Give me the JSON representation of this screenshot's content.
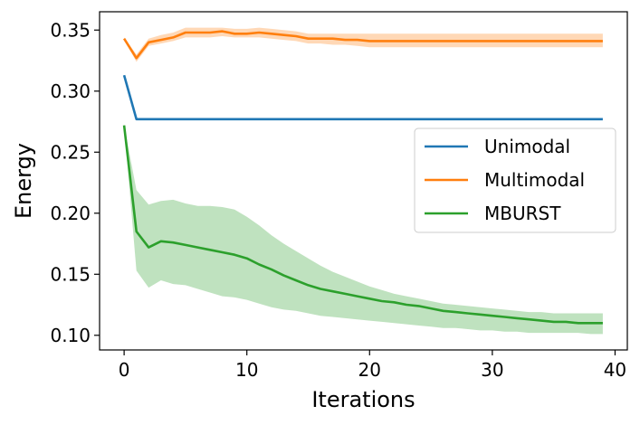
{
  "chart_data": {
    "type": "line",
    "title": "",
    "xlabel": "Iterations",
    "ylabel": "Energy",
    "xlim": [
      -2,
      41
    ],
    "ylim": [
      0.088,
      0.365
    ],
    "xticks": [
      0,
      10,
      20,
      30,
      40
    ],
    "yticks": [
      0.1,
      0.15,
      0.2,
      0.25,
      0.3,
      0.35
    ],
    "xtick_labels": [
      "0",
      "10",
      "20",
      "30",
      "40"
    ],
    "ytick_labels": [
      "0.10",
      "0.15",
      "0.20",
      "0.25",
      "0.30",
      "0.35"
    ],
    "grid": false,
    "legend_position": "center-right",
    "x": [
      0,
      1,
      2,
      3,
      4,
      5,
      6,
      7,
      8,
      9,
      10,
      11,
      12,
      13,
      14,
      15,
      16,
      17,
      18,
      19,
      20,
      21,
      22,
      23,
      24,
      25,
      26,
      27,
      28,
      29,
      30,
      31,
      32,
      33,
      34,
      35,
      36,
      37,
      38,
      39
    ],
    "series": [
      {
        "name": "Unimodal",
        "color": "#1f77b4",
        "values": [
          0.313,
          0.277,
          0.277,
          0.277,
          0.277,
          0.277,
          0.277,
          0.277,
          0.277,
          0.277,
          0.277,
          0.277,
          0.277,
          0.277,
          0.277,
          0.277,
          0.277,
          0.277,
          0.277,
          0.277,
          0.277,
          0.277,
          0.277,
          0.277,
          0.277,
          0.277,
          0.277,
          0.277,
          0.277,
          0.277,
          0.277,
          0.277,
          0.277,
          0.277,
          0.277,
          0.277,
          0.277,
          0.277,
          0.277,
          0.277
        ]
      },
      {
        "name": "Multimodal",
        "color": "#ff7f0e",
        "values": [
          0.343,
          0.327,
          0.34,
          0.342,
          0.344,
          0.348,
          0.348,
          0.348,
          0.349,
          0.347,
          0.347,
          0.348,
          0.347,
          0.346,
          0.345,
          0.343,
          0.343,
          0.343,
          0.342,
          0.342,
          0.341,
          0.341,
          0.341,
          0.341,
          0.341,
          0.341,
          0.341,
          0.341,
          0.341,
          0.341,
          0.341,
          0.341,
          0.341,
          0.341,
          0.341,
          0.341,
          0.341,
          0.341,
          0.341,
          0.341
        ],
        "upper": [
          0.344,
          0.33,
          0.343,
          0.346,
          0.348,
          0.352,
          0.352,
          0.352,
          0.352,
          0.351,
          0.351,
          0.352,
          0.351,
          0.35,
          0.349,
          0.347,
          0.347,
          0.347,
          0.347,
          0.347,
          0.347,
          0.347,
          0.347,
          0.347,
          0.347,
          0.347,
          0.347,
          0.347,
          0.347,
          0.347,
          0.347,
          0.347,
          0.347,
          0.347,
          0.347,
          0.347,
          0.347,
          0.347,
          0.347,
          0.347
        ],
        "lower": [
          0.342,
          0.324,
          0.337,
          0.339,
          0.341,
          0.344,
          0.344,
          0.344,
          0.345,
          0.344,
          0.344,
          0.344,
          0.343,
          0.342,
          0.341,
          0.339,
          0.339,
          0.338,
          0.338,
          0.337,
          0.336,
          0.336,
          0.336,
          0.336,
          0.336,
          0.336,
          0.336,
          0.336,
          0.336,
          0.336,
          0.336,
          0.336,
          0.336,
          0.336,
          0.336,
          0.336,
          0.336,
          0.336,
          0.336,
          0.336
        ]
      },
      {
        "name": "MBURST",
        "color": "#2ca02c",
        "values": [
          0.272,
          0.185,
          0.172,
          0.177,
          0.176,
          0.174,
          0.172,
          0.17,
          0.168,
          0.166,
          0.163,
          0.158,
          0.154,
          0.149,
          0.145,
          0.141,
          0.138,
          0.136,
          0.134,
          0.132,
          0.13,
          0.128,
          0.127,
          0.125,
          0.124,
          0.122,
          0.12,
          0.119,
          0.118,
          0.117,
          0.116,
          0.115,
          0.114,
          0.113,
          0.112,
          0.111,
          0.111,
          0.11,
          0.11,
          0.11
        ],
        "upper": [
          0.272,
          0.219,
          0.207,
          0.21,
          0.211,
          0.208,
          0.206,
          0.206,
          0.205,
          0.203,
          0.197,
          0.19,
          0.182,
          0.175,
          0.169,
          0.163,
          0.157,
          0.152,
          0.148,
          0.144,
          0.14,
          0.137,
          0.134,
          0.132,
          0.13,
          0.128,
          0.126,
          0.125,
          0.124,
          0.123,
          0.122,
          0.121,
          0.12,
          0.119,
          0.119,
          0.118,
          0.118,
          0.118,
          0.118,
          0.118
        ],
        "lower": [
          0.272,
          0.153,
          0.139,
          0.145,
          0.142,
          0.141,
          0.138,
          0.135,
          0.132,
          0.131,
          0.129,
          0.126,
          0.123,
          0.121,
          0.12,
          0.118,
          0.116,
          0.115,
          0.114,
          0.113,
          0.112,
          0.111,
          0.11,
          0.109,
          0.108,
          0.107,
          0.106,
          0.106,
          0.105,
          0.104,
          0.104,
          0.103,
          0.103,
          0.102,
          0.102,
          0.102,
          0.102,
          0.102,
          0.101,
          0.101
        ]
      }
    ]
  }
}
